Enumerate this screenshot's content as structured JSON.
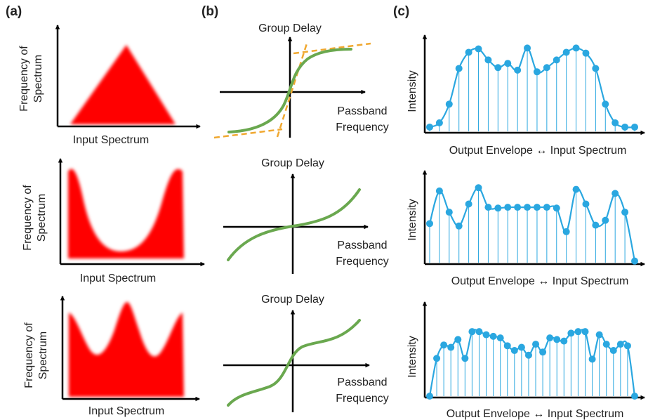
{
  "panel_labels": [
    "(a)",
    "(b)",
    "(c)"
  ],
  "column_a": {
    "y_label_line1": "Frequency of",
    "y_label_line2": "Spectrum",
    "x_label": "Input Spectrum",
    "fill_color": "#ff0000"
  },
  "column_b": {
    "y_label": "Group Delay",
    "x_label_line1": "Passband",
    "x_label_line2": "Frequency",
    "curve_color": "#6aa84f",
    "asymptote_color": "#f0a830"
  },
  "column_c": {
    "y_label": "Intensity",
    "x_label": "Output Envelope ↔ Input Spectrum",
    "line_color": "#2aa7e0"
  },
  "chart_data": [
    {
      "type": "line",
      "row": 1,
      "ylabel": "Intensity",
      "xlabel": "Output Envelope ↔ Input Spectrum",
      "x": [
        0,
        1,
        2,
        3,
        4,
        5,
        6,
        7,
        8,
        9,
        10,
        11,
        12,
        13,
        14,
        15,
        16,
        17,
        18,
        19,
        20,
        21
      ],
      "values": [
        0.05,
        0.1,
        0.32,
        0.74,
        0.93,
        0.97,
        0.84,
        0.75,
        0.8,
        0.72,
        0.98,
        0.7,
        0.75,
        0.84,
        0.93,
        0.98,
        0.92,
        0.74,
        0.32,
        0.1,
        0.05,
        0.05
      ]
    },
    {
      "type": "line",
      "row": 2,
      "ylabel": "Intensity",
      "xlabel": "Output Envelope ↔ Input Spectrum",
      "x": [
        0,
        1,
        2,
        3,
        4,
        5,
        6,
        7,
        8,
        9,
        10,
        11,
        12,
        13,
        14,
        15,
        16,
        17,
        18,
        19,
        20,
        21
      ],
      "values": [
        0.48,
        0.88,
        0.62,
        0.45,
        0.72,
        0.92,
        0.68,
        0.67,
        0.68,
        0.68,
        0.68,
        0.68,
        0.68,
        0.67,
        0.38,
        0.9,
        0.72,
        0.46,
        0.52,
        0.85,
        0.62,
        0.02
      ]
    },
    {
      "type": "line",
      "row": 3,
      "ylabel": "Intensity",
      "xlabel": "Output Envelope ↔ Input Spectrum",
      "x": [
        0,
        1,
        2,
        3,
        4,
        5,
        6,
        7,
        8,
        9,
        10,
        11,
        12,
        13,
        14,
        15,
        16,
        17,
        18,
        19,
        20,
        21,
        22,
        23,
        24,
        25,
        26,
        27,
        28,
        29
      ],
      "values": [
        0.0,
        0.48,
        0.65,
        0.62,
        0.72,
        0.48,
        0.82,
        0.82,
        0.78,
        0.76,
        0.74,
        0.64,
        0.58,
        0.62,
        0.52,
        0.66,
        0.56,
        0.74,
        0.72,
        0.7,
        0.8,
        0.82,
        0.82,
        0.47,
        0.78,
        0.66,
        0.58,
        0.66,
        0.64,
        0.0
      ]
    }
  ]
}
